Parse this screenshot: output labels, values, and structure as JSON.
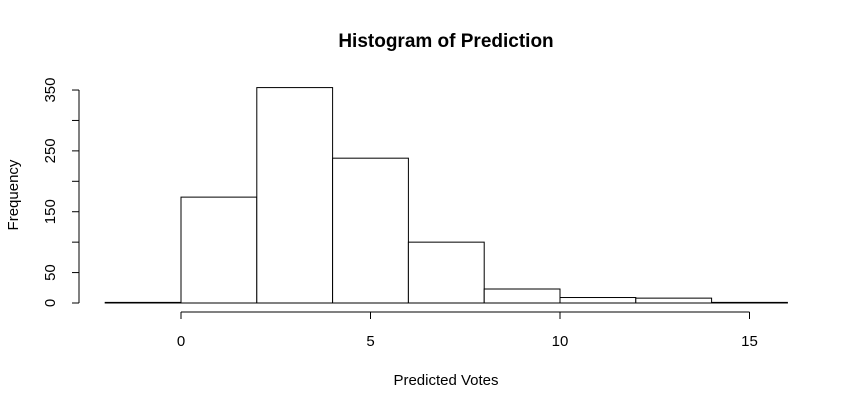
{
  "chart_data": {
    "type": "bar",
    "title": "Histogram of Prediction",
    "xlabel": "Predicted Votes",
    "ylabel": "Frequency",
    "bin_edges": [
      -2,
      0,
      2,
      4,
      6,
      8,
      10,
      12,
      14,
      16
    ],
    "values": [
      1,
      174,
      354,
      238,
      100,
      23,
      9,
      8,
      1
    ],
    "xlim": [
      -2,
      16
    ],
    "ylim": [
      0,
      354
    ],
    "x_ticks": [
      0,
      5,
      10,
      15
    ],
    "x_tick_labels": [
      "0",
      "5",
      "10",
      "15"
    ],
    "y_ticks": [
      0,
      50,
      100,
      150,
      200,
      250,
      300,
      350
    ],
    "y_tick_labels": [
      "0",
      "50",
      "",
      "150",
      "",
      "250",
      "",
      "350"
    ],
    "grid": false,
    "legend": "none"
  }
}
